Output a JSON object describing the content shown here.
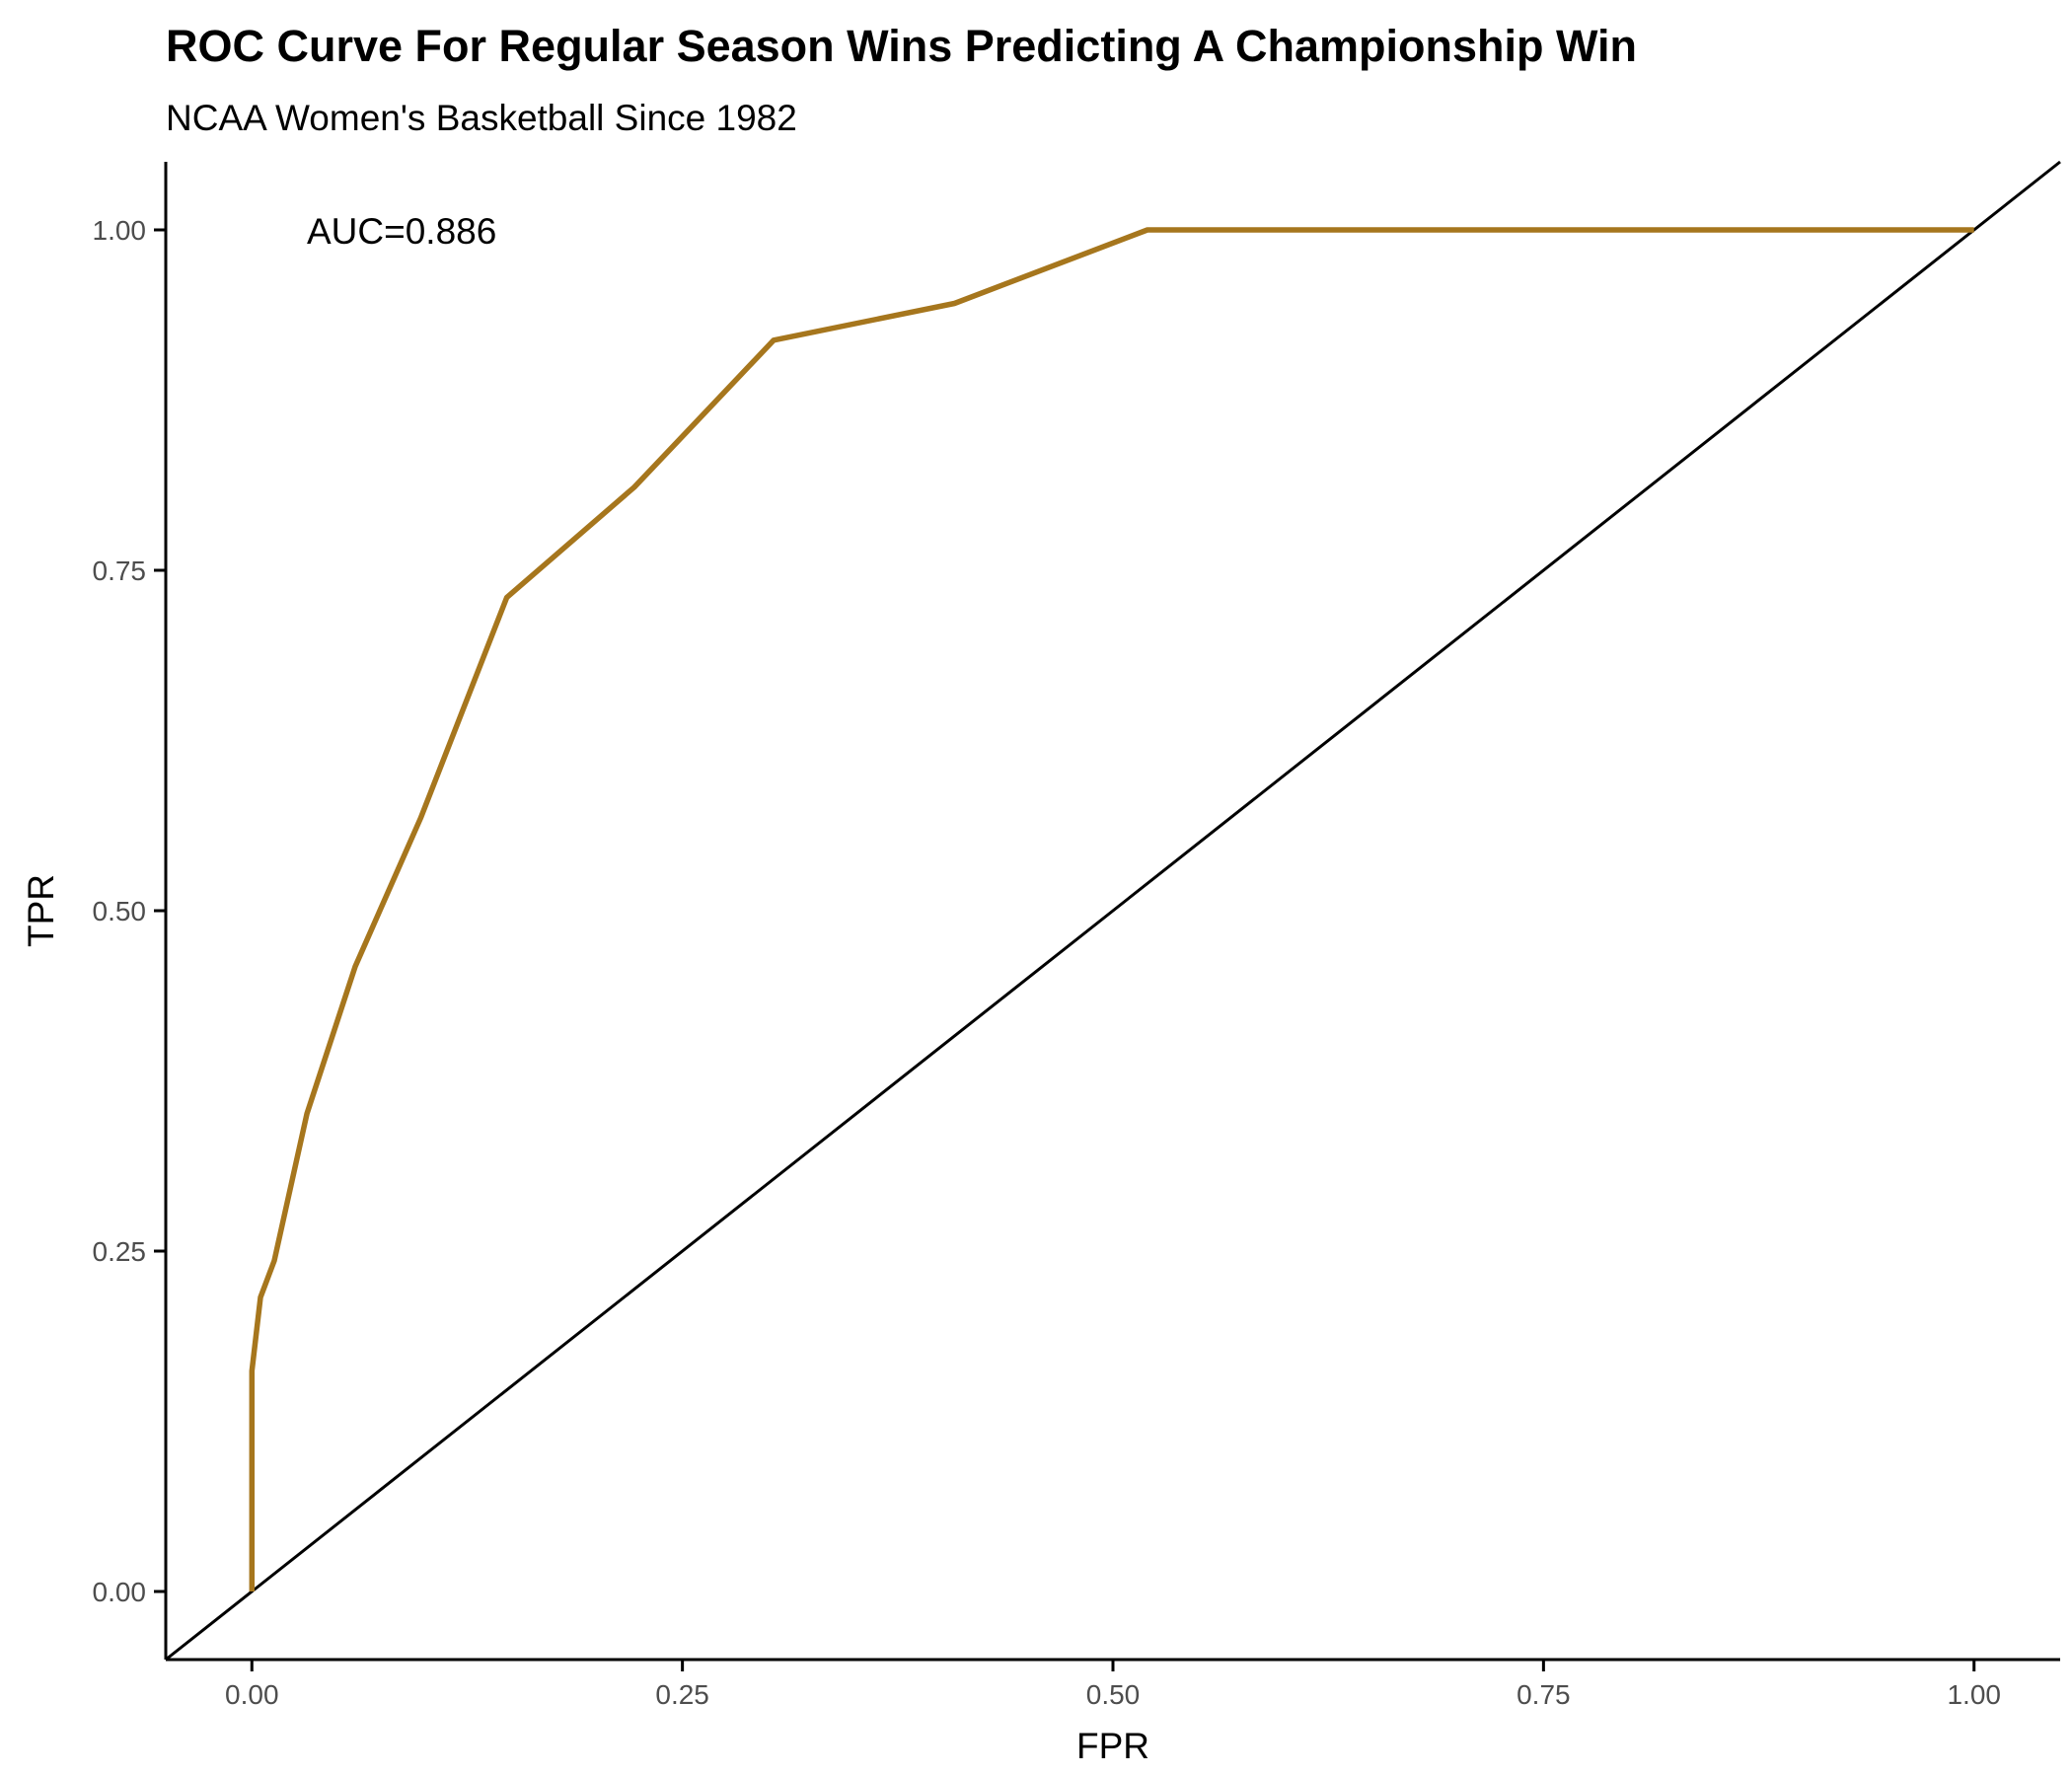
{
  "chart_data": {
    "type": "line",
    "title": "ROC Curve For Regular Season Wins Predicting A Championship Win",
    "subtitle": "NCAA Women's Basketball Since 1982",
    "xlabel": "FPR",
    "ylabel": "TPR",
    "xlim": [
      -0.05,
      1.05
    ],
    "ylim": [
      -0.05,
      1.05
    ],
    "x_ticks": [
      "0.00",
      "0.25",
      "0.50",
      "0.75",
      "1.00"
    ],
    "y_ticks": [
      "0.00",
      "0.25",
      "0.50",
      "0.75",
      "1.00"
    ],
    "grid": false,
    "annotation": "AUC=0.886",
    "reference_line": {
      "from": [
        -0.05,
        -0.05
      ],
      "to": [
        1.05,
        1.05
      ],
      "color": "#000000"
    },
    "series": [
      {
        "color": "#A6761D",
        "points": [
          [
            0.0,
            0.0
          ],
          [
            0.0,
            0.162
          ],
          [
            0.005,
            0.216
          ],
          [
            0.013,
            0.243
          ],
          [
            0.032,
            0.351
          ],
          [
            0.06,
            0.459
          ],
          [
            0.098,
            0.568
          ],
          [
            0.148,
            0.73
          ],
          [
            0.222,
            0.811
          ],
          [
            0.303,
            0.919
          ],
          [
            0.408,
            0.946
          ],
          [
            0.52,
            1.0
          ],
          [
            1.0,
            1.0
          ]
        ]
      }
    ]
  }
}
